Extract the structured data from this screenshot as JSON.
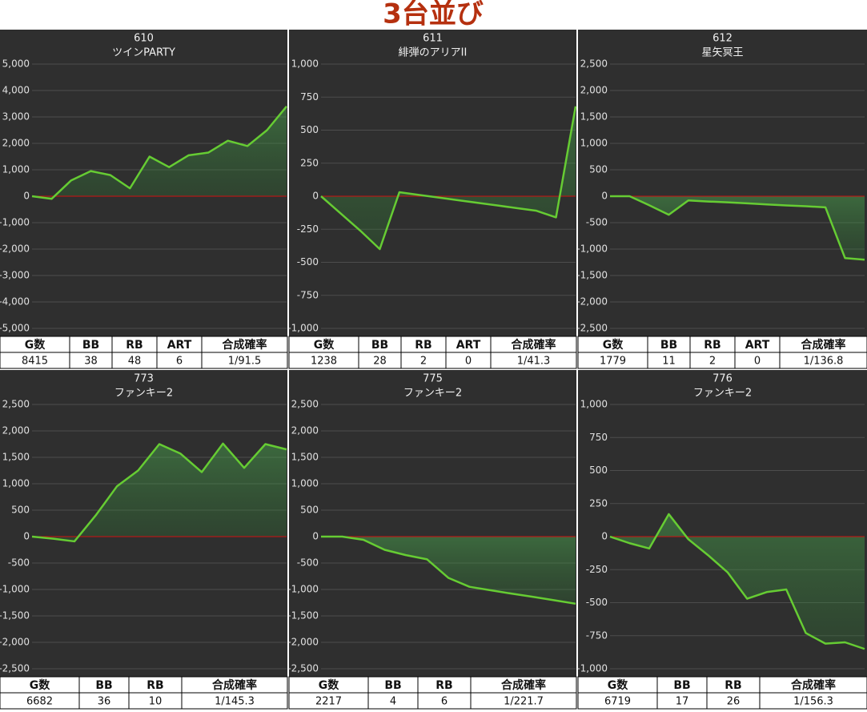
{
  "title": "3台並び",
  "chart_data": [
    {
      "type": "line",
      "title": "610",
      "subtitle": "ツインPARTY",
      "color": "#66cc33",
      "grid": true,
      "values": [
        0,
        -100,
        600,
        950,
        800,
        300,
        1500,
        1100,
        1550,
        1650,
        2100,
        1900,
        2500,
        3400
      ],
      "ylim": [
        -5000,
        5000
      ],
      "yticks": [
        {
          "value": -5000,
          "label": "-5,000"
        },
        {
          "value": -4000,
          "label": "-4,000"
        },
        {
          "value": -3000,
          "label": "-3,000"
        },
        {
          "value": -2000,
          "label": "-2,000"
        },
        {
          "value": -1000,
          "label": "-1,000"
        },
        0,
        {
          "value": 1000,
          "label": "1,000"
        },
        {
          "value": 2000,
          "label": "2,000"
        },
        {
          "value": 3000,
          "label": "3,000"
        },
        {
          "value": 4000,
          "label": "4,000"
        },
        {
          "value": 5000,
          "label": "5,000"
        }
      ]
    },
    {
      "type": "line",
      "title": "611",
      "subtitle": "緋弾のアリアII",
      "color": "#66cc33",
      "grid": true,
      "values": [
        0,
        -130,
        -260,
        -400,
        30,
        10,
        -10,
        -30,
        -50,
        -70,
        -90,
        -110,
        -160,
        680
      ],
      "ylim": [
        -1000,
        1000
      ],
      "yticks": [
        {
          "value": -1000,
          "label": "-1,000"
        },
        -750,
        -500,
        -250,
        0,
        250,
        500,
        750,
        {
          "value": 1000,
          "label": "1,000"
        }
      ]
    },
    {
      "type": "line",
      "title": "612",
      "subtitle": "星矢冥王",
      "color": "#66cc33",
      "grid": true,
      "values": [
        0,
        0,
        -170,
        -350,
        -80,
        -100,
        -115,
        -135,
        -155,
        -175,
        -190,
        -210,
        -1170,
        -1200
      ],
      "ylim": [
        -2500,
        2500
      ],
      "yticks": [
        {
          "value": -2500,
          "label": "-2,500"
        },
        {
          "value": -2000,
          "label": "-2,000"
        },
        {
          "value": -1500,
          "label": "-1,500"
        },
        {
          "value": -1000,
          "label": "-1,000"
        },
        -500,
        0,
        500,
        {
          "value": 1000,
          "label": "1,000"
        },
        {
          "value": 1500,
          "label": "1,500"
        },
        {
          "value": 2000,
          "label": "2,000"
        },
        {
          "value": 2500,
          "label": "2,500"
        }
      ]
    },
    {
      "type": "line",
      "title": "773",
      "subtitle": "ファンキー2",
      "color": "#66cc33",
      "grid": true,
      "values": [
        0,
        -40,
        -90,
        400,
        950,
        1250,
        1750,
        1570,
        1220,
        1760,
        1300,
        1750,
        1650
      ],
      "ylim": [
        -2500,
        2500
      ],
      "yticks": [
        {
          "value": -2500,
          "label": "-2,500"
        },
        {
          "value": -2000,
          "label": "-2,000"
        },
        {
          "value": -1500,
          "label": "-1,500"
        },
        {
          "value": -1000,
          "label": "-1,000"
        },
        -500,
        0,
        500,
        {
          "value": 1000,
          "label": "1,000"
        },
        {
          "value": 1500,
          "label": "1,500"
        },
        {
          "value": 2000,
          "label": "2,000"
        },
        {
          "value": 2500,
          "label": "2,500"
        }
      ]
    },
    {
      "type": "line",
      "title": "775",
      "subtitle": "ファンキー2",
      "color": "#66cc33",
      "grid": true,
      "values": [
        0,
        0,
        -60,
        -250,
        -350,
        -430,
        -780,
        -950,
        -1015,
        -1080,
        -1140,
        -1205,
        -1270
      ],
      "ylim": [
        -2500,
        2500
      ],
      "yticks": [
        {
          "value": -2500,
          "label": "-2,500"
        },
        {
          "value": -2000,
          "label": "-2,000"
        },
        {
          "value": -1500,
          "label": "-1,500"
        },
        {
          "value": -1000,
          "label": "-1,000"
        },
        -500,
        0,
        500,
        {
          "value": 1000,
          "label": "1,000"
        },
        {
          "value": 1500,
          "label": "1,500"
        },
        {
          "value": 2000,
          "label": "2,000"
        },
        {
          "value": 2500,
          "label": "2,500"
        }
      ]
    },
    {
      "type": "line",
      "title": "776",
      "subtitle": "ファンキー2",
      "color": "#66cc33",
      "grid": true,
      "values": [
        0,
        -50,
        -90,
        170,
        -20,
        -140,
        -270,
        -470,
        -420,
        -400,
        -730,
        -810,
        -800,
        -850
      ],
      "ylim": [
        -1000,
        1000
      ],
      "yticks": [
        {
          "value": -1000,
          "label": "-1,000"
        },
        -750,
        -500,
        -250,
        0,
        250,
        500,
        750,
        {
          "value": 1000,
          "label": "1,000"
        }
      ]
    }
  ],
  "tables": [
    {
      "headers": [
        "G数",
        "BB",
        "RB",
        "ART",
        "合成確率"
      ],
      "row": [
        8415,
        38,
        48,
        6,
        "1/91.5"
      ]
    },
    {
      "headers": [
        "G数",
        "BB",
        "RB",
        "ART",
        "合成確率"
      ],
      "row": [
        1238,
        28,
        2,
        0,
        "1/41.3"
      ]
    },
    {
      "headers": [
        "G数",
        "BB",
        "RB",
        "ART",
        "合成確率"
      ],
      "row": [
        1779,
        11,
        2,
        0,
        "1/136.8"
      ]
    },
    {
      "headers": [
        "G数",
        "BB",
        "RB",
        "合成確率"
      ],
      "row": [
        6682,
        36,
        10,
        "1/145.3"
      ]
    },
    {
      "headers": [
        "G数",
        "BB",
        "RB",
        "合成確率"
      ],
      "row": [
        2217,
        4,
        6,
        "1/221.7"
      ]
    },
    {
      "headers": [
        "G数",
        "BB",
        "RB",
        "合成確率"
      ],
      "row": [
        6719,
        17,
        26,
        "1/156.3"
      ]
    }
  ]
}
